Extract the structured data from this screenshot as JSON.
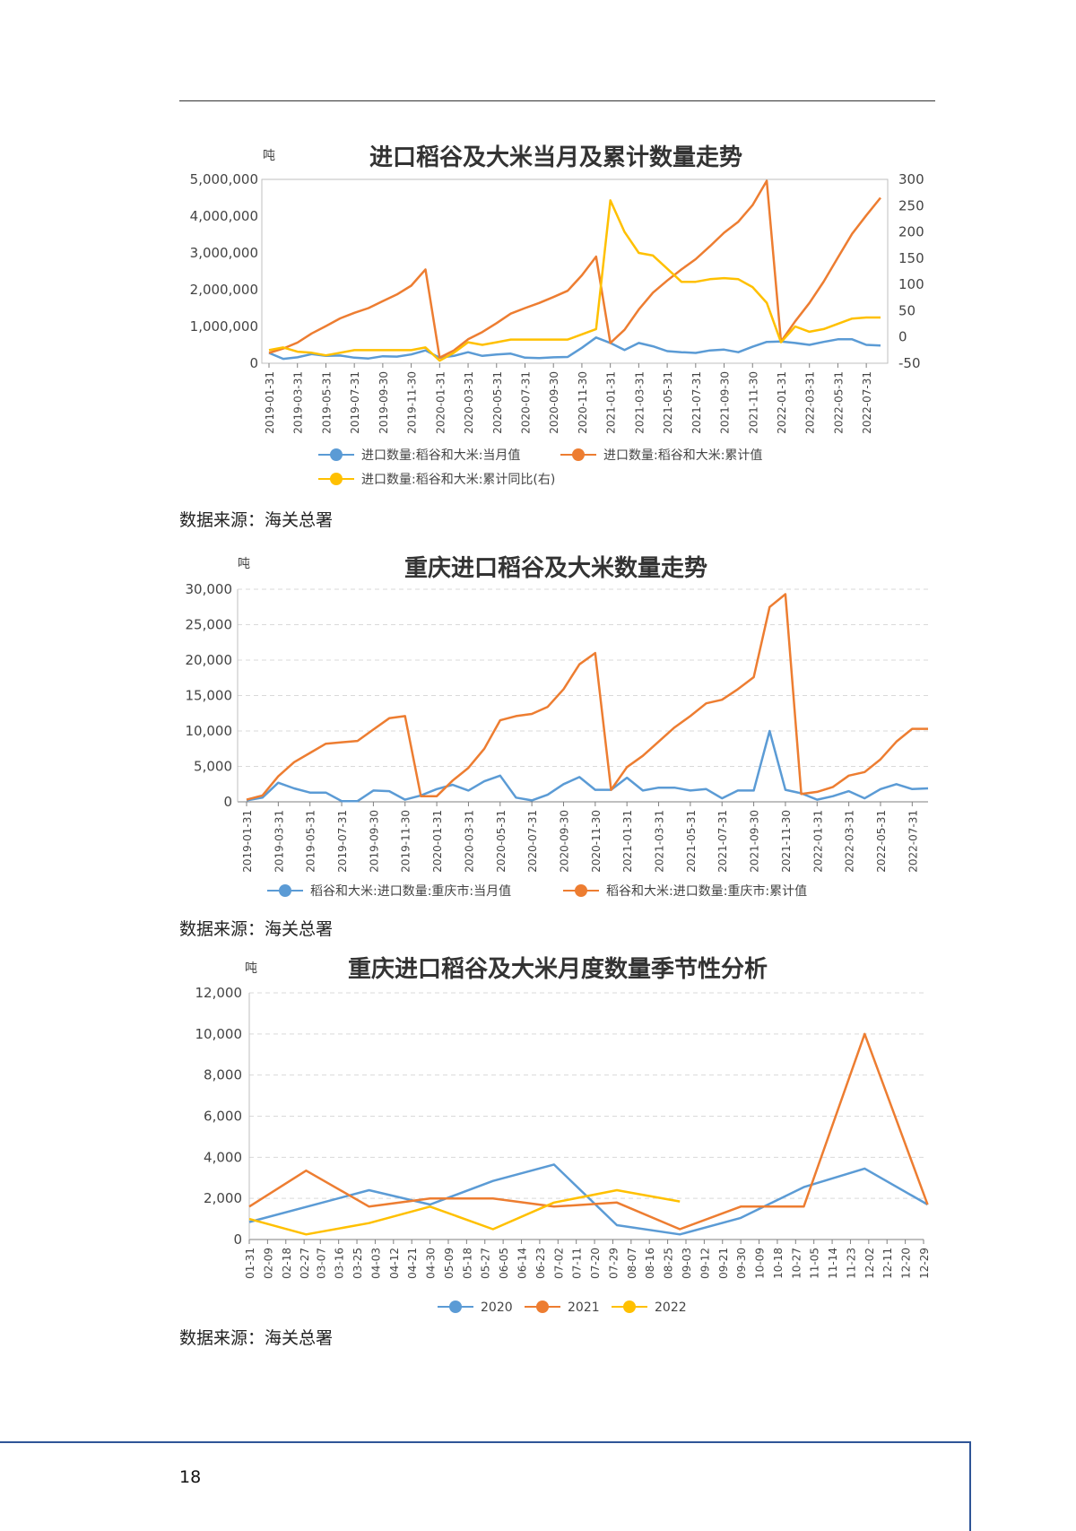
{
  "page_number": "18",
  "colors": {
    "blue": "#5b9bd5",
    "orange": "#ed7d31",
    "yellow": "#ffc000",
    "grid": "#d9d9d9",
    "axis": "#7f7f7f"
  },
  "charts": [
    {
      "source": "数据来源：海关总署"
    },
    {
      "source": "数据来源：海关总署"
    },
    {
      "source": "数据来源：海关总署"
    }
  ],
  "chart_data": [
    {
      "type": "line",
      "title": "进口稻谷及大米当月及累计数量走势",
      "unit": "吨",
      "ylim": [
        0,
        5000000
      ],
      "y_ticks": [
        "0",
        "1,000,000",
        "2,000,000",
        "3,000,000",
        "4,000,000",
        "5,000,000"
      ],
      "y_tick_values": [
        0,
        1000000,
        2000000,
        3000000,
        4000000,
        5000000
      ],
      "y2lim": [
        -50,
        300
      ],
      "y2_ticks": [
        "-50",
        "0",
        "50",
        "100",
        "150",
        "200",
        "250",
        "300"
      ],
      "y2_tick_values": [
        -50,
        0,
        50,
        100,
        150,
        200,
        250,
        300
      ],
      "grid": false,
      "legend_position": "bottom",
      "x": [
        "2019-01-31",
        "2019-02-28",
        "2019-03-31",
        "2019-04-30",
        "2019-05-31",
        "2019-06-30",
        "2019-07-31",
        "2019-08-31",
        "2019-09-30",
        "2019-10-31",
        "2019-11-30",
        "2019-12-31",
        "2020-01-31",
        "2020-02-29",
        "2020-03-31",
        "2020-04-30",
        "2020-05-31",
        "2020-06-30",
        "2020-07-31",
        "2020-08-31",
        "2020-09-30",
        "2020-10-31",
        "2020-11-30",
        "2020-12-31",
        "2021-01-31",
        "2021-02-28",
        "2021-03-31",
        "2021-04-30",
        "2021-05-31",
        "2021-06-30",
        "2021-07-31",
        "2021-08-31",
        "2021-09-30",
        "2021-10-31",
        "2021-11-30",
        "2021-12-31",
        "2022-01-31",
        "2022-02-28",
        "2022-03-31",
        "2022-04-30",
        "2022-05-31",
        "2022-06-30",
        "2022-07-31",
        "2022-08-31"
      ],
      "x_tick_labels": [
        "2019-01-31",
        "2019-03-31",
        "2019-05-31",
        "2019-07-31",
        "2019-09-30",
        "2019-11-30",
        "2020-01-31",
        "2020-03-31",
        "2020-05-31",
        "2020-07-31",
        "2020-09-30",
        "2020-11-30",
        "2021-01-31",
        "2021-03-31",
        "2021-05-31",
        "2021-07-31",
        "2021-09-30",
        "2021-11-30",
        "2022-01-31",
        "2022-03-31",
        "2022-05-31",
        "2022-07-31"
      ],
      "series": [
        {
          "name": "进口数量:稻谷和大米:当月值",
          "color": "#5b9bd5",
          "axis": "left",
          "values": [
            280000,
            120000,
            160000,
            250000,
            200000,
            210000,
            150000,
            130000,
            190000,
            180000,
            240000,
            350000,
            150000,
            200000,
            300000,
            200000,
            240000,
            260000,
            150000,
            140000,
            160000,
            170000,
            420000,
            700000,
            550000,
            360000,
            550000,
            460000,
            330000,
            300000,
            280000,
            350000,
            370000,
            300000,
            450000,
            580000,
            590000,
            550000,
            500000,
            580000,
            650000,
            650000,
            500000,
            480000
          ]
        },
        {
          "name": "进口数量:稻谷和大米:累计值",
          "color": "#ed7d31",
          "axis": "left",
          "values": [
            280000,
            400000,
            560000,
            810000,
            1010000,
            1220000,
            1370000,
            1500000,
            1690000,
            1870000,
            2110000,
            2550000,
            150000,
            350000,
            650000,
            850000,
            1090000,
            1350000,
            1500000,
            1640000,
            1800000,
            1970000,
            2390000,
            2900000,
            550000,
            910000,
            1460000,
            1920000,
            2250000,
            2550000,
            2830000,
            3180000,
            3550000,
            3850000,
            4300000,
            4960000,
            590000,
            1140000,
            1640000,
            2220000,
            2870000,
            3520000,
            4020000,
            4500000
          ]
        },
        {
          "name": "进口数量:稻谷和大米:累计同比(右)",
          "color": "#ffc000",
          "axis": "right",
          "values": [
            -25,
            -20,
            -28,
            -30,
            -35,
            -30,
            -25,
            -25,
            -25,
            -25,
            -25,
            -20,
            -45,
            -30,
            -10,
            -15,
            -10,
            -5,
            -5,
            -5,
            -5,
            -5,
            5,
            15,
            260,
            200,
            160,
            155,
            130,
            105,
            105,
            110,
            112,
            110,
            95,
            65,
            -10,
            20,
            10,
            15,
            25,
            35,
            37,
            37
          ]
        }
      ]
    },
    {
      "type": "line",
      "title": "重庆进口稻谷及大米数量走势",
      "unit": "吨",
      "ylim": [
        0,
        30000
      ],
      "y_ticks": [
        "0",
        "5,000",
        "10,000",
        "15,000",
        "20,000",
        "25,000",
        "30,000"
      ],
      "y_tick_values": [
        0,
        5000,
        10000,
        15000,
        20000,
        25000,
        30000
      ],
      "grid": true,
      "legend_position": "bottom",
      "x": [
        "2019-01-31",
        "2019-02-28",
        "2019-03-31",
        "2019-04-30",
        "2019-05-31",
        "2019-06-30",
        "2019-07-31",
        "2019-08-31",
        "2019-09-30",
        "2019-10-31",
        "2019-11-30",
        "2019-12-31",
        "2020-01-31",
        "2020-02-29",
        "2020-03-31",
        "2020-04-30",
        "2020-05-31",
        "2020-06-30",
        "2020-07-31",
        "2020-08-31",
        "2020-09-30",
        "2020-10-31",
        "2020-11-30",
        "2020-12-31",
        "2021-01-31",
        "2021-02-28",
        "2021-03-31",
        "2021-04-30",
        "2021-05-31",
        "2021-06-30",
        "2021-07-31",
        "2021-08-31",
        "2021-09-30",
        "2021-10-31",
        "2021-11-30",
        "2021-12-31",
        "2022-01-31",
        "2022-02-28",
        "2022-03-31",
        "2022-04-30",
        "2022-05-31",
        "2022-06-30",
        "2022-07-31",
        "2022-08-31"
      ],
      "x_tick_labels": [
        "2019-01-31",
        "2019-03-31",
        "2019-05-31",
        "2019-07-31",
        "2019-09-30",
        "2019-11-30",
        "2020-01-31",
        "2020-03-31",
        "2020-05-31",
        "2020-07-31",
        "2020-09-30",
        "2020-11-30",
        "2021-01-31",
        "2021-03-31",
        "2021-05-31",
        "2021-07-31",
        "2021-09-30",
        "2021-11-30",
        "2022-01-31",
        "2022-03-31",
        "2022-05-31",
        "2022-07-31"
      ],
      "series": [
        {
          "name": "稻谷和大米:进口数量:重庆市:当月值",
          "color": "#5b9bd5",
          "values": [
            200,
            600,
            2700,
            1900,
            1300,
            1300,
            100,
            100,
            1600,
            1500,
            300,
            900,
            1800,
            2400,
            1600,
            2900,
            3700,
            600,
            200,
            1000,
            2500,
            3500,
            1700,
            1700,
            3400,
            1600,
            2000,
            2000,
            1600,
            1800,
            500,
            1600,
            1600,
            10000,
            1700,
            1200,
            300,
            800,
            1500,
            500,
            1800,
            2500,
            1800,
            1900
          ]
        },
        {
          "name": "稻谷和大米:进口数量:重庆市:累计值",
          "color": "#ed7d31",
          "values": [
            300,
            900,
            3600,
            5600,
            6900,
            8200,
            8400,
            8600,
            10200,
            11800,
            12100,
            800,
            800,
            3000,
            4800,
            7500,
            11500,
            12100,
            12400,
            13400,
            15900,
            19400,
            21000,
            1700,
            4900,
            6500,
            8500,
            10500,
            12100,
            13900,
            14400,
            15900,
            17600,
            27500,
            29300,
            1100,
            1400,
            2100,
            3700,
            4200,
            6000,
            8500,
            10300,
            10300
          ]
        }
      ]
    },
    {
      "type": "line",
      "title": "重庆进口稻谷及大米月度数量季节性分析",
      "unit": "吨",
      "ylim": [
        0,
        12000
      ],
      "y_ticks": [
        "0",
        "2,000",
        "4,000",
        "6,000",
        "8,000",
        "10,000",
        "12,000"
      ],
      "y_tick_values": [
        0,
        2000,
        4000,
        6000,
        8000,
        10000,
        12000
      ],
      "grid": true,
      "legend_position": "bottom",
      "x_tick_labels": [
        "01-31",
        "02-09",
        "02-18",
        "02-27",
        "03-07",
        "03-16",
        "03-25",
        "04-03",
        "04-12",
        "04-21",
        "04-30",
        "05-09",
        "05-18",
        "05-27",
        "06-05",
        "06-14",
        "06-23",
        "07-02",
        "07-11",
        "07-20",
        "07-29",
        "08-07",
        "08-16",
        "08-25",
        "09-03",
        "09-12",
        "09-21",
        "09-30",
        "10-09",
        "10-18",
        "10-27",
        "11-05",
        "11-14",
        "11-23",
        "12-02",
        "12-11",
        "12-20",
        "12-29"
      ],
      "x_tick_days": [
        31,
        40,
        49,
        58,
        66,
        75,
        84,
        93,
        102,
        111,
        120,
        129,
        138,
        147,
        156,
        165,
        174,
        183,
        192,
        201,
        210,
        219,
        228,
        237,
        246,
        255,
        264,
        273,
        282,
        291,
        300,
        309,
        318,
        327,
        336,
        345,
        354,
        363
      ],
      "xlim_days": [
        31,
        363
      ],
      "series": [
        {
          "name": "2020",
          "color": "#5b9bd5",
          "points": [
            [
              "01-31",
              850
            ],
            [
              "03-31",
              2400
            ],
            [
              "04-30",
              1700
            ],
            [
              "05-31",
              2850
            ],
            [
              "06-30",
              3650
            ],
            [
              "07-31",
              700
            ],
            [
              "08-31",
              250
            ],
            [
              "09-30",
              1050
            ],
            [
              "10-31",
              2550
            ],
            [
              "11-30",
              3450
            ],
            [
              "12-31",
              1700
            ]
          ]
        },
        {
          "name": "2021",
          "color": "#ed7d31",
          "points": [
            [
              "01-31",
              1600
            ],
            [
              "02-28",
              3350
            ],
            [
              "03-31",
              1600
            ],
            [
              "04-30",
              2000
            ],
            [
              "05-31",
              2000
            ],
            [
              "06-30",
              1600
            ],
            [
              "07-31",
              1800
            ],
            [
              "08-31",
              500
            ],
            [
              "09-30",
              1600
            ],
            [
              "10-31",
              1600
            ],
            [
              "11-30",
              10000
            ],
            [
              "12-31",
              1700
            ]
          ]
        },
        {
          "name": "2022",
          "color": "#ffc000",
          "points": [
            [
              "01-31",
              1000
            ],
            [
              "02-28",
              250
            ],
            [
              "03-31",
              800
            ],
            [
              "04-30",
              1600
            ],
            [
              "05-31",
              500
            ],
            [
              "06-30",
              1800
            ],
            [
              "07-31",
              2400
            ],
            [
              "08-31",
              1850
            ]
          ]
        }
      ]
    }
  ]
}
